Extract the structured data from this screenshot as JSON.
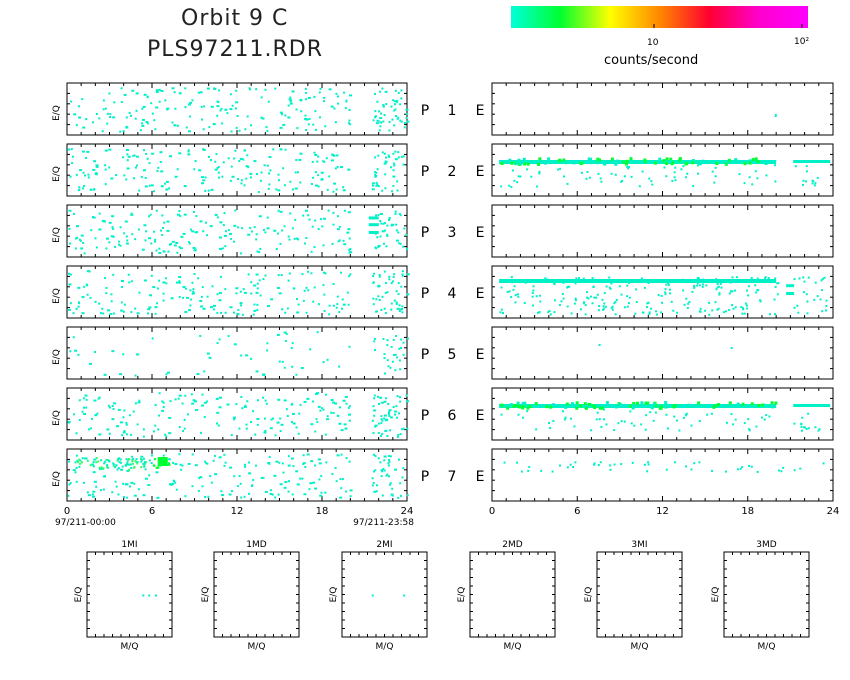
{
  "header": {
    "title_line1": "Orbit 9 C",
    "title_line2": "PLS97211.RDR"
  },
  "colorbar": {
    "tick_labels": [
      "10",
      "10²"
    ],
    "label": "counts/second",
    "scale": "log",
    "stops": [
      "#00ffd8",
      "#00ff30",
      "#ffff00",
      "#ff8800",
      "#ff0030",
      "#ff00cc",
      "#ff00ff"
    ]
  },
  "left_panels": {
    "ylabel": "E/Q",
    "xticks": [
      "0",
      "6",
      "12",
      "18",
      "24"
    ],
    "xrange": [
      0,
      24
    ],
    "date_start": "97/211-00:00",
    "date_end": "97/211-23:58"
  },
  "right_panels": {
    "xticks": [
      "0",
      "6",
      "12",
      "18",
      "24"
    ],
    "xrange": [
      0,
      24
    ]
  },
  "row_labels": [
    {
      "p": "P",
      "n": "1",
      "e": "E"
    },
    {
      "p": "P",
      "n": "2",
      "e": "E"
    },
    {
      "p": "P",
      "n": "3",
      "e": "E"
    },
    {
      "p": "P",
      "n": "4",
      "e": "E"
    },
    {
      "p": "P",
      "n": "5",
      "e": "E"
    },
    {
      "p": "P",
      "n": "6",
      "e": "E"
    },
    {
      "p": "P",
      "n": "7",
      "e": "E"
    }
  ],
  "mq_panels": {
    "titles": [
      "1MI",
      "1MD",
      "2MI",
      "2MD",
      "3MI",
      "3MD"
    ],
    "xlabel": "M/Q",
    "ylabel": "E/Q"
  },
  "chart_data": [
    {
      "type": "heatmap",
      "name": "left_spectrograms",
      "x_unit_hours": [
        0,
        24
      ],
      "rows": [
        "P1",
        "P2",
        "P3",
        "P4",
        "P5",
        "P6",
        "P7"
      ],
      "activity_level": [
        "scattered",
        "scattered",
        "scattered",
        "scattered",
        "sparse",
        "scattered",
        "scattered"
      ],
      "data_gap_hours": [
        [
          20.0,
          21.5
        ]
      ],
      "p7_enhancement": {
        "hours": [
          6.0,
          7.3
        ],
        "level": "green"
      }
    },
    {
      "type": "heatmap",
      "name": "right_spectrograms",
      "x_unit_hours": [
        0,
        24
      ],
      "rows": [
        "P1",
        "P2",
        "P3",
        "P4",
        "P5",
        "P6",
        "P7"
      ],
      "band_features": {
        "P2": {
          "band": "green-cyan",
          "hours": [
            0.5,
            20.0
          ],
          "band2_hours": [
            21.2,
            23.8
          ]
        },
        "P4": {
          "band": "cyan",
          "hours": [
            0.5,
            20.0
          ]
        },
        "P6": {
          "band": "green-cyan",
          "hours": [
            0.5,
            20.0
          ],
          "band2_hours": [
            21.2,
            23.8
          ]
        },
        "P7": {
          "band": "cyan-sparse",
          "hours": [
            0.5,
            23.5
          ]
        }
      },
      "empty_rows": [
        "P1",
        "P3",
        "P5"
      ]
    },
    {
      "type": "scatter",
      "name": "mq_panels",
      "points": {
        "1MI": [
          [
            0.65,
            0.5
          ],
          [
            0.72,
            0.5
          ],
          [
            0.8,
            0.5
          ]
        ],
        "2MI": [
          [
            0.35,
            0.5
          ],
          [
            0.72,
            0.5
          ]
        ]
      }
    }
  ]
}
